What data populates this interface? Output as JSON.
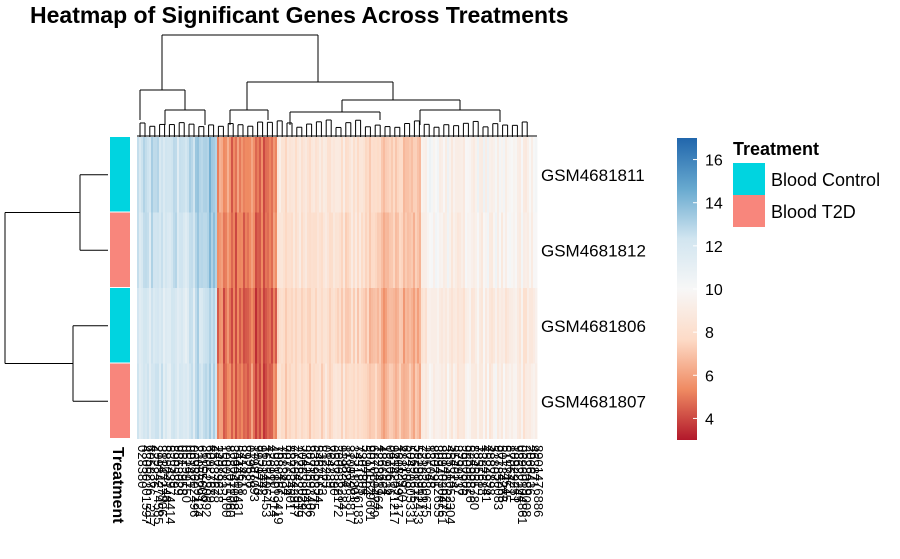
{
  "title": "Heatmap of Significant Genes Across Treatments",
  "chart_data": {
    "type": "heatmap",
    "title": "Heatmap of Significant Genes Across Treatments",
    "rows": [
      {
        "sample": "GSM4681811",
        "treatment": "Blood Control"
      },
      {
        "sample": "GSM4681812",
        "treatment": "Blood T2D"
      },
      {
        "sample": "GSM4681806",
        "treatment": "Blood Control"
      },
      {
        "sample": "GSM4681807",
        "treatment": "Blood T2D"
      }
    ],
    "column_count": 200,
    "value_range": [
      3,
      17
    ],
    "colorbar_ticks": [
      4,
      6,
      8,
      10,
      12,
      14,
      16
    ],
    "colorscale": [
      "#b2182b",
      "#ef8a62",
      "#fddbc7",
      "#f7f7f7",
      "#d1e5f0",
      "#67a9cf",
      "#2166ac"
    ],
    "annotation_label": "Treatment",
    "annotation_legend": {
      "title": "Treatment",
      "entries": [
        {
          "label": "Blood Control",
          "color": "#00d4e0"
        },
        {
          "label": "Blood T2D",
          "color": "#f8867c"
        }
      ]
    },
    "visible_column_label_fragment": "217",
    "row_dendrogram": true,
    "column_dendrogram": true
  }
}
